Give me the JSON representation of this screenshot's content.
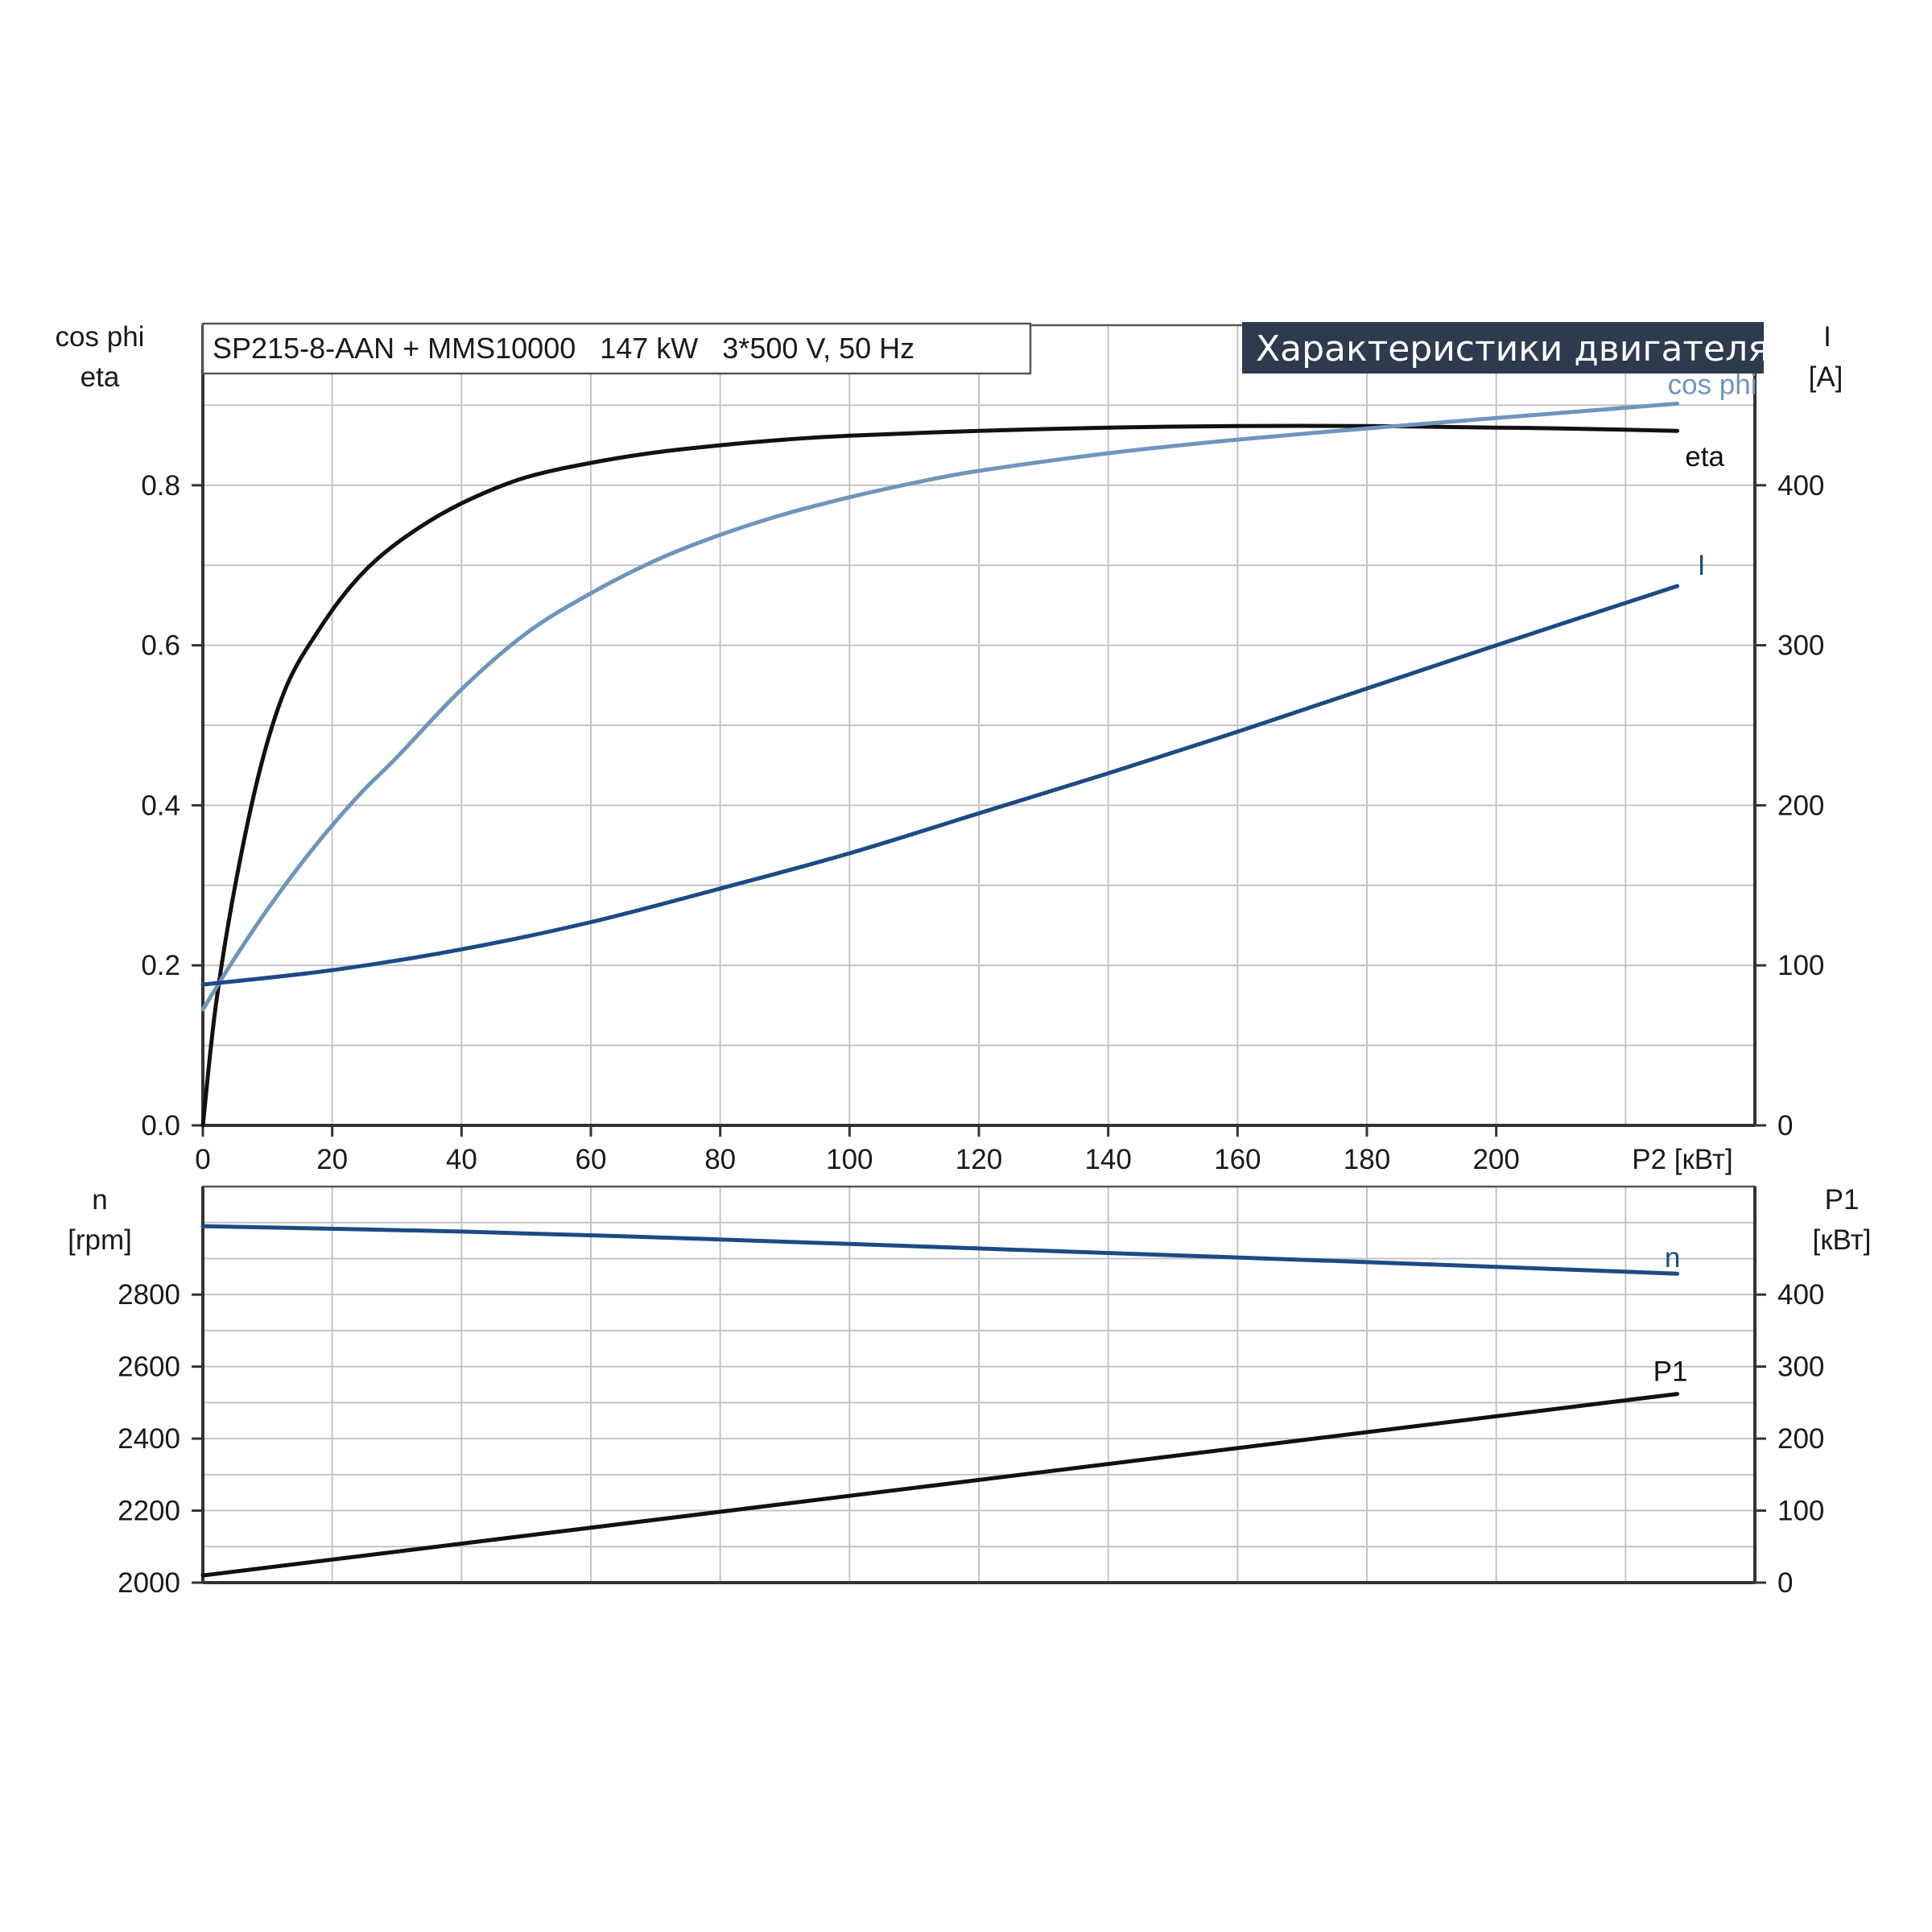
{
  "header": {
    "model_label": "SP215-8-AAN + MMS10000   147 kW   3*500 V, 50 Hz",
    "banner": "Характеристики двигателя"
  },
  "colors": {
    "eta": "#111111",
    "cos_phi": "#6f95bd",
    "current": "#1d4a85",
    "speed": "#1d4a85",
    "p1": "#111111",
    "banner_bg": "#2e3a4e",
    "grid": "#c4c4c4"
  },
  "chart_data": [
    {
      "type": "line",
      "panel": "top",
      "x_axis_label": "P2 [кВт]",
      "x_ticks": [
        "0",
        "20",
        "40",
        "60",
        "80",
        "100",
        "120",
        "140",
        "160",
        "180",
        "200"
      ],
      "xlim": [
        0,
        240
      ],
      "y_left_label": [
        "cos phi",
        "eta"
      ],
      "y_left_ticks": [
        "0.0",
        "0.2",
        "0.4",
        "0.6",
        "0.8"
      ],
      "y_left_lim": [
        0,
        1.0
      ],
      "y_right_label": [
        "I",
        "[A]"
      ],
      "y_right_ticks": [
        "0",
        "100",
        "200",
        "300",
        "400"
      ],
      "y_right_lim": [
        0,
        500
      ],
      "grid": true,
      "series": [
        {
          "name": "eta",
          "axis": "left",
          "color_key": "eta",
          "x": [
            0,
            2,
            5,
            9,
            13,
            18,
            23,
            28,
            35,
            42,
            50,
            60,
            70,
            80,
            90,
            100,
            120,
            140,
            160,
            180,
            200,
            210,
            228
          ],
          "y": [
            0.0,
            0.15,
            0.3,
            0.45,
            0.55,
            0.62,
            0.675,
            0.715,
            0.755,
            0.785,
            0.81,
            0.828,
            0.841,
            0.85,
            0.857,
            0.862,
            0.868,
            0.872,
            0.874,
            0.874,
            0.872,
            0.871,
            0.868
          ]
        },
        {
          "name": "cos phi",
          "axis": "left",
          "color_key": "cos_phi",
          "x": [
            0,
            5,
            10,
            15,
            20,
            25,
            30,
            40,
            50,
            60,
            70,
            80,
            90,
            100,
            110,
            120,
            140,
            160,
            180,
            200,
            228
          ],
          "y": [
            0.145,
            0.21,
            0.27,
            0.325,
            0.375,
            0.42,
            0.46,
            0.545,
            0.615,
            0.665,
            0.706,
            0.738,
            0.764,
            0.785,
            0.803,
            0.818,
            0.84,
            0.857,
            0.871,
            0.884,
            0.902
          ]
        },
        {
          "name": "I",
          "axis": "right",
          "color_key": "current",
          "x": [
            0,
            20,
            40,
            60,
            80,
            100,
            120,
            140,
            160,
            180,
            200,
            228
          ],
          "y": [
            88,
            97,
            110,
            127,
            148,
            170,
            195,
            220,
            246,
            273,
            300,
            337
          ]
        }
      ]
    },
    {
      "type": "line",
      "panel": "bottom",
      "xlim": [
        0,
        240
      ],
      "y_left_label": [
        "n",
        "[rpm]"
      ],
      "y_left_ticks": [
        "2000",
        "2200",
        "2400",
        "2600",
        "2800"
      ],
      "y_left_lim": [
        2000,
        3100
      ],
      "y_right_label": [
        "P1",
        "[кВт]"
      ],
      "y_right_ticks": [
        "0",
        "100",
        "200",
        "300",
        "400"
      ],
      "y_right_lim": [
        0,
        550
      ],
      "grid": true,
      "series": [
        {
          "name": "n",
          "axis": "left",
          "color_key": "speed",
          "x": [
            0,
            40,
            80,
            120,
            160,
            200,
            228
          ],
          "y": [
            2990,
            2975,
            2953,
            2928,
            2903,
            2877,
            2858
          ]
        },
        {
          "name": "P1",
          "axis": "right",
          "color_key": "p1",
          "x": [
            0,
            228
          ],
          "y": [
            10,
            262
          ]
        }
      ]
    }
  ]
}
